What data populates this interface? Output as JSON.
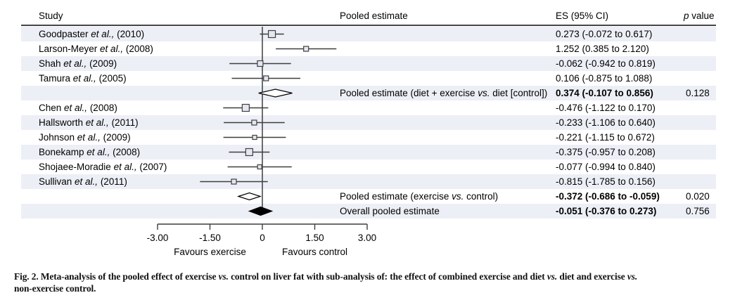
{
  "columns": {
    "study": "Study",
    "pooled": "Pooled estimate",
    "es": "ES (95% CI)",
    "p_italic": "p",
    "p_rest": " value"
  },
  "colors": {
    "row_shade": "#edeff6",
    "line": "#3f3f3f",
    "marker_fill": "#e4e7ef",
    "marker_stroke": "#3f3f3f",
    "diamond_open_fill": "#ffffff",
    "diamond_filled_fill": "#000000",
    "text": "#000000",
    "header_rule": "#454545"
  },
  "chart_data": {
    "type": "forest",
    "xlim": [
      -3.0,
      3.0
    ],
    "x_ticks": {
      "values": [
        -3.0,
        -1.5,
        0,
        1.5,
        3.0
      ],
      "labels": [
        "-3.00",
        "-1.50",
        "0",
        "1.50",
        "3.00"
      ]
    },
    "favours_left": "Favours exercise",
    "favours_right": "Favours control",
    "rows": [
      {
        "study": [
          {
            "t": "Goodpaster "
          },
          {
            "t": "et al.,",
            "i": true
          },
          {
            "t": " (2010)"
          }
        ],
        "es": 0.273,
        "lo": -0.072,
        "hi": 0.617,
        "es_text": "0.273 (-0.072 to 0.617)",
        "p": "",
        "marker": "square",
        "w": 10,
        "bold": false
      },
      {
        "study": [
          {
            "t": "Larson-Meyer "
          },
          {
            "t": "et al.,",
            "i": true
          },
          {
            "t": " (2008)"
          }
        ],
        "es": 1.252,
        "lo": 0.385,
        "hi": 2.12,
        "es_text": "1.252 (0.385 to 2.120)",
        "p": "",
        "marker": "square",
        "w": 7,
        "bold": false
      },
      {
        "study": [
          {
            "t": "Shah "
          },
          {
            "t": "et al.,",
            "i": true
          },
          {
            "t": " (2009)"
          }
        ],
        "es": -0.062,
        "lo": -0.942,
        "hi": 0.819,
        "es_text": "-0.062 (-0.942 to 0.819)",
        "p": "",
        "marker": "square",
        "w": 8,
        "bold": false
      },
      {
        "study": [
          {
            "t": "Tamura "
          },
          {
            "t": "et al.,",
            "i": true
          },
          {
            "t": " (2005)"
          }
        ],
        "es": 0.106,
        "lo": -0.875,
        "hi": 1.088,
        "es_text": "0.106 (-0.875 to 1.088)",
        "p": "",
        "marker": "square",
        "w": 7,
        "bold": false
      },
      {
        "pooled_label": [
          {
            "t": "Pooled estimate (diet + exercise "
          },
          {
            "t": "vs.",
            "i": true
          },
          {
            "t": " diet [control])"
          }
        ],
        "es": 0.374,
        "lo": -0.107,
        "hi": 0.856,
        "es_text": "0.374 (-0.107 to 0.856)",
        "p": "0.128",
        "marker": "diamond_open",
        "h": 11,
        "bold": true
      },
      {
        "study": [
          {
            "t": "Chen "
          },
          {
            "t": "et al.,",
            "i": true
          },
          {
            "t": " (2008)"
          }
        ],
        "es": -0.476,
        "lo": -1.122,
        "hi": 0.17,
        "es_text": "-0.476 (-1.122 to 0.170)",
        "p": "",
        "marker": "square",
        "w": 10,
        "bold": false
      },
      {
        "study": [
          {
            "t": "Hallsworth "
          },
          {
            "t": "et al.,",
            "i": true
          },
          {
            "t": " (2011)"
          }
        ],
        "es": -0.233,
        "lo": -1.106,
        "hi": 0.64,
        "es_text": "-0.233 (-1.106 to 0.640)",
        "p": "",
        "marker": "square",
        "w": 7,
        "bold": false
      },
      {
        "study": [
          {
            "t": "Johnson "
          },
          {
            "t": "et al.,",
            "i": true
          },
          {
            "t": " (2009)"
          }
        ],
        "es": -0.221,
        "lo": -1.115,
        "hi": 0.672,
        "es_text": "-0.221 (-1.115 to 0.672)",
        "p": "",
        "marker": "square",
        "w": 6,
        "bold": false
      },
      {
        "study": [
          {
            "t": "Bonekamp "
          },
          {
            "t": "et al.,",
            "i": true
          },
          {
            "t": " (2008)"
          }
        ],
        "es": -0.375,
        "lo": -0.957,
        "hi": 0.208,
        "es_text": "-0.375 (-0.957 to 0.208)",
        "p": "",
        "marker": "square",
        "w": 10,
        "bold": false
      },
      {
        "study": [
          {
            "t": "Shojaee-Moradie "
          },
          {
            "t": "et al.,",
            "i": true
          },
          {
            "t": " (2007)"
          }
        ],
        "es": -0.077,
        "lo": -0.994,
        "hi": 0.84,
        "es_text": "-0.077 (-0.994 to 0.840)",
        "p": "",
        "marker": "square",
        "w": 6,
        "bold": false
      },
      {
        "study": [
          {
            "t": "Sullivan "
          },
          {
            "t": "et al.,",
            "i": true
          },
          {
            "t": " (2011)"
          }
        ],
        "es": -0.815,
        "lo": -1.785,
        "hi": 0.156,
        "es_text": "-0.815 (-1.785 to 0.156)",
        "p": "",
        "marker": "square",
        "w": 7,
        "bold": false
      },
      {
        "pooled_label": [
          {
            "t": "Pooled estimate (exercise "
          },
          {
            "t": "vs.",
            "i": true
          },
          {
            "t": " control)"
          }
        ],
        "es": -0.372,
        "lo": -0.686,
        "hi": -0.059,
        "es_text": "-0.372 (-0.686 to -0.059)",
        "p": "0.020",
        "marker": "diamond_open",
        "h": 10,
        "bold": true
      },
      {
        "pooled_label": [
          {
            "t": "Overall pooled estimate"
          }
        ],
        "es": -0.051,
        "lo": -0.376,
        "hi": 0.273,
        "es_text": "-0.051 (-0.376 to 0.273)",
        "p": "0.756",
        "marker": "diamond_filled",
        "h": 12,
        "bold": true
      }
    ]
  },
  "caption": {
    "segments": [
      {
        "t": "Fig. 2. Meta-analysis of the pooled effect of exercise "
      },
      {
        "t": "vs.",
        "i": true
      },
      {
        "t": " control on liver fat with sub-analysis of: the effect of combined exercise and diet "
      },
      {
        "t": "vs.",
        "i": true
      },
      {
        "t": " diet and exercise "
      },
      {
        "t": "vs.",
        "i": true
      },
      {
        "br": true
      },
      {
        "t": "non-exercise control."
      }
    ]
  }
}
